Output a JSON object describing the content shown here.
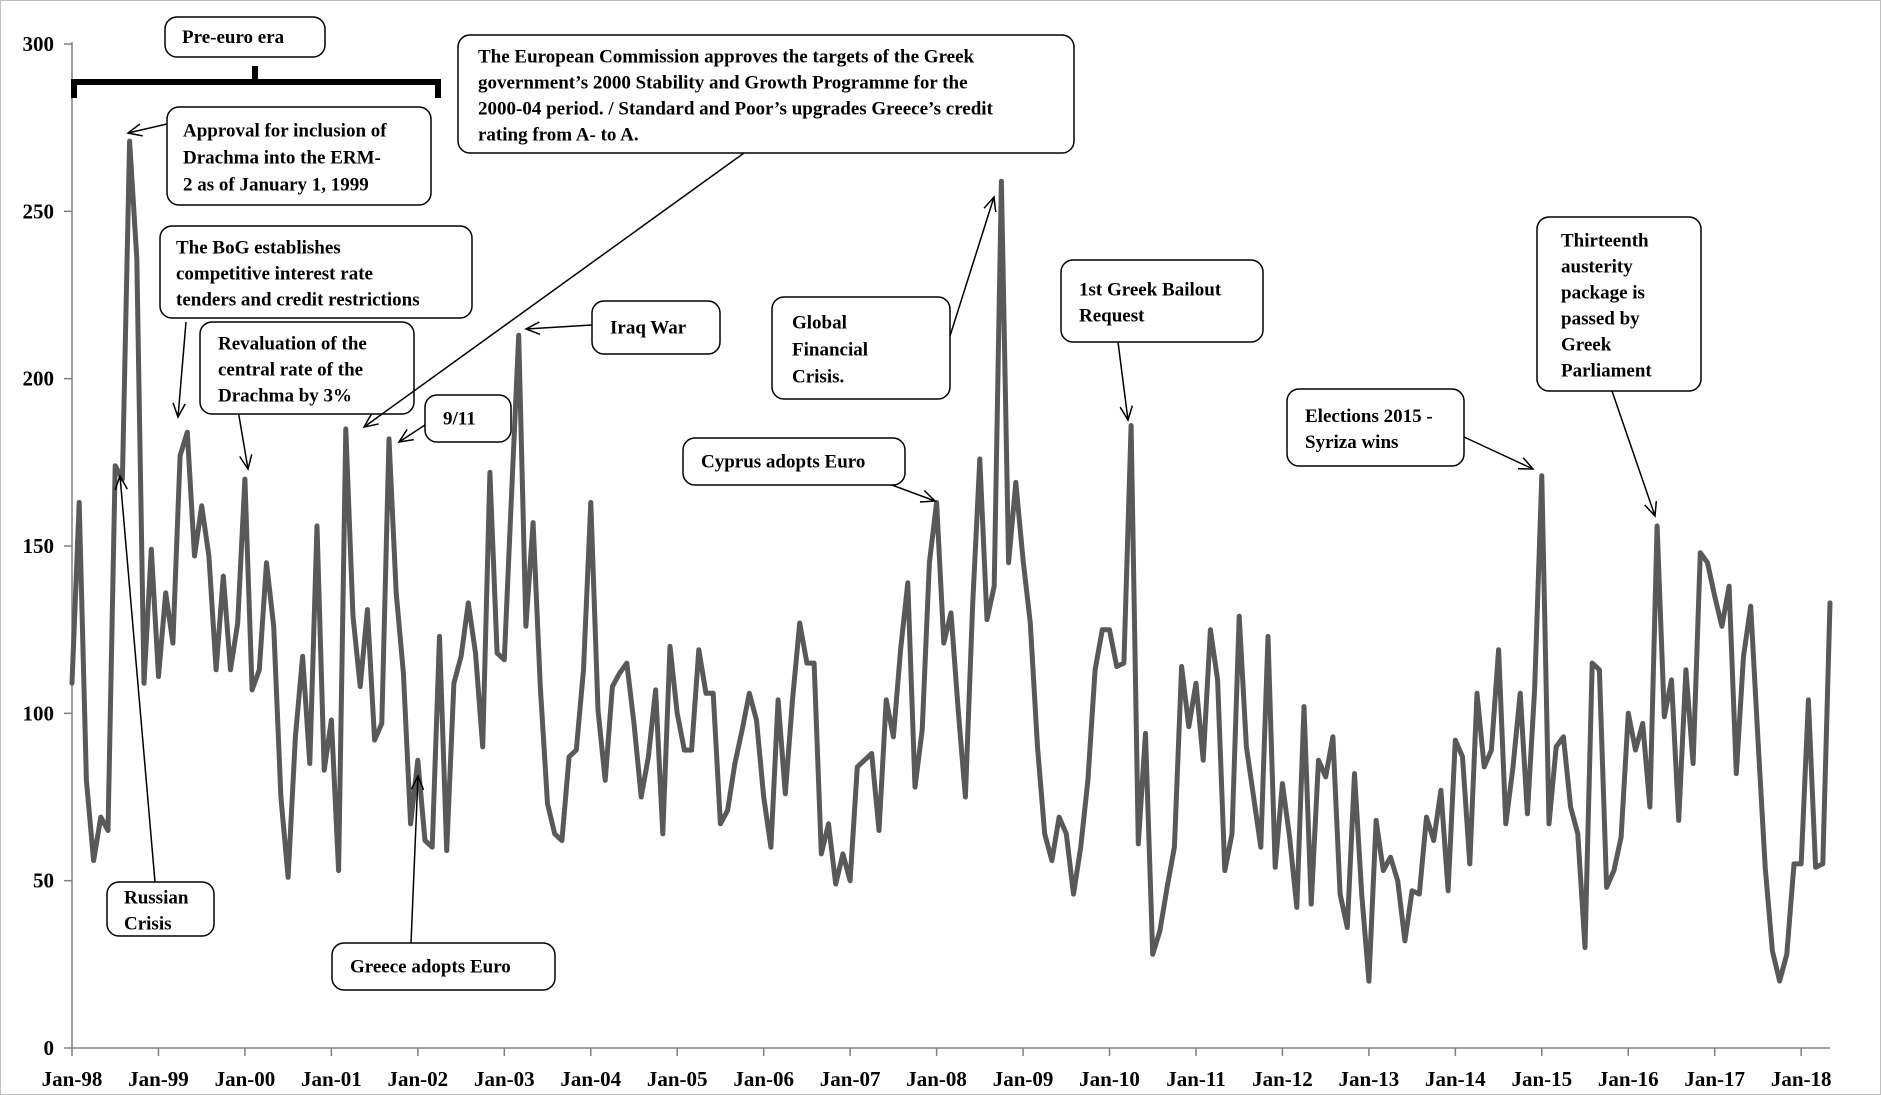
{
  "chart_data": {
    "type": "line",
    "title": "",
    "xlabel": "",
    "ylabel": "",
    "ylim": [
      0,
      300
    ],
    "yticks": [
      0,
      50,
      100,
      150,
      200,
      250,
      300
    ],
    "xtick_labels": [
      "Jan-98",
      "Jan-99",
      "Jan-00",
      "Jan-01",
      "Jan-02",
      "Jan-03",
      "Jan-04",
      "Jan-05",
      "Jan-06",
      "Jan-07",
      "Jan-08",
      "Jan-09",
      "Jan-10",
      "Jan-11",
      "Jan-12",
      "Jan-13",
      "Jan-14",
      "Jan-15",
      "Jan-16",
      "Jan-17",
      "Jan-18"
    ],
    "x_start": "Jan-98",
    "series": [
      {
        "color": "#595959",
        "values": [
          109,
          163,
          80,
          56,
          69,
          65,
          174,
          170,
          271,
          236,
          109,
          149,
          111,
          136,
          121,
          177,
          184,
          147,
          162,
          147,
          113,
          141,
          113,
          127,
          170,
          107,
          113,
          145,
          126,
          75,
          51,
          93,
          117,
          85,
          156,
          83,
          98,
          53,
          185,
          129,
          108,
          131,
          92,
          97,
          182,
          136,
          112,
          67,
          86,
          62,
          60,
          123,
          59,
          109,
          117,
          133,
          118,
          90,
          172,
          118,
          116,
          165,
          213,
          126,
          157,
          108,
          73,
          64,
          62,
          87,
          89,
          113,
          163,
          101,
          80,
          108,
          112,
          115,
          97,
          75,
          87,
          107,
          64,
          120,
          100,
          89,
          89,
          119,
          106,
          106,
          67,
          71,
          85,
          95,
          106,
          98,
          75,
          60,
          104,
          76,
          104,
          127,
          115,
          115,
          58,
          67,
          49,
          58,
          50,
          84,
          86,
          88,
          65,
          104,
          93,
          119,
          139,
          78,
          95,
          145,
          163,
          121,
          130,
          101,
          75,
          132,
          176,
          128,
          138,
          259,
          145,
          169,
          146,
          127,
          90,
          64,
          56,
          69,
          64,
          46,
          60,
          80,
          113,
          125,
          125,
          114,
          115,
          186,
          61,
          94,
          28,
          35,
          48,
          60,
          114,
          96,
          109,
          86,
          125,
          110,
          53,
          64,
          129,
          90,
          75,
          60,
          123,
          54,
          79,
          63,
          42,
          102,
          43,
          86,
          81,
          93,
          46,
          36,
          82,
          46,
          20,
          68,
          53,
          57,
          50,
          32,
          47,
          46,
          69,
          62,
          77,
          47,
          92,
          87,
          55,
          106,
          84,
          89,
          119,
          67,
          84,
          106,
          70,
          107,
          171,
          67,
          90,
          93,
          72,
          64,
          30,
          115,
          113,
          48,
          53,
          63,
          100,
          89,
          97,
          72,
          156,
          99,
          110,
          68,
          113,
          85,
          148,
          145,
          135,
          126,
          138,
          82,
          117,
          132,
          92,
          54,
          29,
          20,
          28,
          55,
          55,
          104,
          54,
          55,
          133
        ]
      }
    ]
  },
  "annotations": [
    {
      "id": "pre-euro-era",
      "lines": [
        "Pre-euro era"
      ]
    },
    {
      "id": "approval-erm2",
      "lines": [
        "Approval for inclusion of",
        "Drachma into the ERM-",
        "2 as of January 1, 1999"
      ]
    },
    {
      "id": "bog-tenders",
      "lines": [
        "The BoG establishes",
        "competitive interest rate",
        "tenders and credit restrictions"
      ]
    },
    {
      "id": "revaluation",
      "lines": [
        "Revaluation of the",
        "central rate of the",
        "Drachma by 3%"
      ]
    },
    {
      "id": "nine-eleven",
      "lines": [
        "9/11"
      ]
    },
    {
      "id": "european-commission",
      "lines": [
        "The European Commission approves the targets of the Greek",
        "government’s 2000 Stability and Growth Programme for the",
        "2000-04 period. / Standard and Poor’s upgrades Greece’s credit",
        "rating from A- to A."
      ]
    },
    {
      "id": "iraq-war",
      "lines": [
        "Iraq War"
      ]
    },
    {
      "id": "global-financial-crisis",
      "lines": [
        "Global",
        "Financial",
        "Crisis."
      ]
    },
    {
      "id": "cyprus-euro",
      "lines": [
        "Cyprus adopts Euro"
      ]
    },
    {
      "id": "greek-bailout",
      "lines": [
        "1st Greek Bailout",
        "Request"
      ]
    },
    {
      "id": "elections-2015",
      "lines": [
        "Elections 2015 -",
        "Syriza wins"
      ]
    },
    {
      "id": "austerity-package",
      "lines": [
        "Thirteenth",
        "austerity",
        "package is",
        "passed by",
        "Greek",
        "Parliament"
      ]
    },
    {
      "id": "russian-crisis",
      "lines": [
        "Russian",
        "Crisis"
      ]
    },
    {
      "id": "greece-euro",
      "lines": [
        "Greece adopts Euro"
      ]
    }
  ]
}
